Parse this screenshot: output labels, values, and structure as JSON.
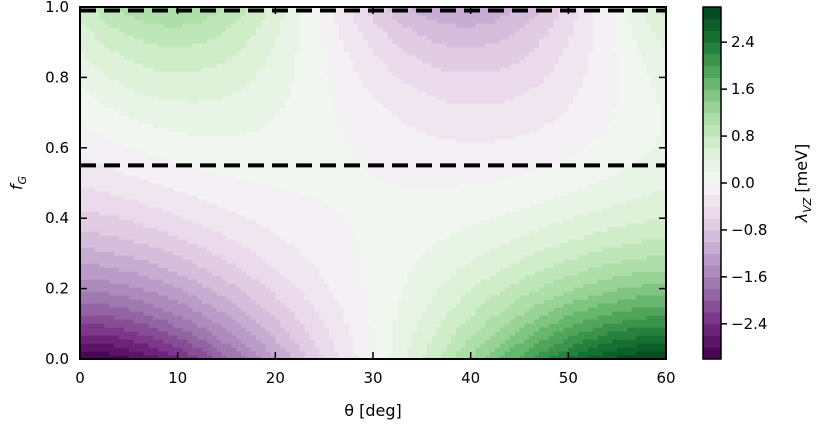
{
  "chart_data": {
    "type": "heatmap",
    "xlabel": "θ [deg]",
    "ylabel": "f",
    "ylabel_sub": "G",
    "xlim": [
      0,
      60
    ],
    "ylim": [
      0.0,
      1.0
    ],
    "x_ticks": [
      0,
      10,
      20,
      30,
      40,
      50,
      60
    ],
    "x_tick_labels": [
      "0",
      "10",
      "20",
      "30",
      "40",
      "50",
      "60"
    ],
    "y_ticks": [
      0.0,
      0.2,
      0.4,
      0.6,
      0.8,
      1.0
    ],
    "y_tick_labels": [
      "0.0",
      "0.2",
      "0.4",
      "0.6",
      "0.8",
      "1.0"
    ],
    "dashed_lines_y": [
      0.55,
      0.99
    ],
    "colorbar": {
      "label": "λ",
      "label_sub": "VZ",
      "label_unit": " [meV]",
      "vmin": -3.0,
      "vmax": 3.0,
      "ticks": [
        2.4,
        1.6,
        0.8,
        0.0,
        -0.8,
        -1.6,
        -2.4
      ],
      "tick_labels": [
        "2.4",
        "1.6",
        "0.8",
        "0.0",
        "−0.8",
        "−1.6",
        "−2.4"
      ],
      "levels": 30,
      "colormap": "PRGn",
      "colors": {
        "negative_end": "#40004b",
        "negative_mid": "#9970ab",
        "neutral": "#f7f7f7",
        "positive_mid": "#5aae61",
        "positive_end": "#00441b"
      }
    },
    "field_description_values": [
      {
        "theta": 0,
        "f_G": 0.0,
        "lambda": -3.0
      },
      {
        "theta": 60,
        "f_G": 0.0,
        "lambda": 3.0
      },
      {
        "theta": 18,
        "f_G": 1.0,
        "lambda": 1.2
      },
      {
        "theta": 42,
        "f_G": 1.0,
        "lambda": -1.2
      },
      {
        "theta": 30,
        "f_G": 0.5,
        "lambda": 0.0
      }
    ]
  }
}
